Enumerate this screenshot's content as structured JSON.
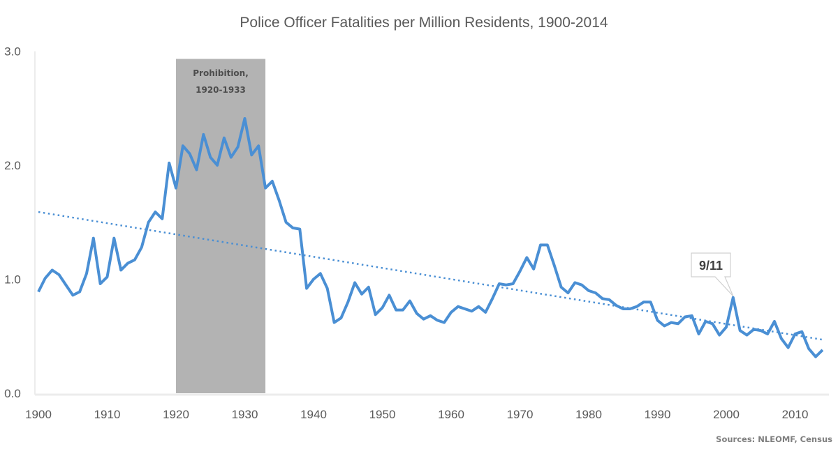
{
  "chart_data": {
    "type": "line",
    "title": "Police Officer Fatalities per Million Residents, 1900-2014",
    "xlabel": "",
    "ylabel": "",
    "xlim": [
      1900,
      2014
    ],
    "ylim": [
      0,
      3
    ],
    "x_ticks": [
      "1900",
      "1910",
      "1920",
      "1930",
      "1940",
      "1950",
      "1960",
      "1970",
      "1980",
      "1990",
      "2000",
      "2010"
    ],
    "y_ticks": [
      "0.0",
      "1.0",
      "2.0",
      "3.0"
    ],
    "grid": false,
    "legend": "none",
    "series": [
      {
        "color": "#4a8fd4",
        "x_start": 1900,
        "values": [
          0.89,
          1.01,
          1.08,
          1.04,
          0.95,
          0.86,
          0.89,
          1.05,
          1.36,
          0.96,
          1.02,
          1.36,
          1.08,
          1.14,
          1.17,
          1.28,
          1.5,
          1.59,
          1.53,
          2.02,
          1.8,
          2.17,
          2.1,
          1.96,
          2.27,
          2.07,
          2.0,
          2.24,
          2.07,
          2.16,
          2.41,
          2.09,
          2.17,
          1.8,
          1.86,
          1.69,
          1.5,
          1.45,
          1.44,
          0.92,
          1.0,
          1.05,
          0.92,
          0.62,
          0.66,
          0.8,
          0.97,
          0.87,
          0.93,
          0.69,
          0.75,
          0.86,
          0.73,
          0.73,
          0.81,
          0.7,
          0.65,
          0.68,
          0.64,
          0.62,
          0.71,
          0.76,
          0.74,
          0.72,
          0.76,
          0.71,
          0.83,
          0.96,
          0.95,
          0.96,
          1.07,
          1.19,
          1.09,
          1.3,
          1.3,
          1.12,
          0.93,
          0.88,
          0.97,
          0.95,
          0.9,
          0.88,
          0.83,
          0.82,
          0.77,
          0.74,
          0.74,
          0.76,
          0.8,
          0.8,
          0.64,
          0.59,
          0.62,
          0.61,
          0.67,
          0.68,
          0.52,
          0.63,
          0.61,
          0.51,
          0.58,
          0.84,
          0.55,
          0.51,
          0.56,
          0.55,
          0.52,
          0.63,
          0.48,
          0.4,
          0.52,
          0.54,
          0.39,
          0.32,
          0.38
        ]
      }
    ],
    "trendline": {
      "type": "linear",
      "style": "dotted",
      "color": "#4a8fd4",
      "start": [
        1900,
        1.59
      ],
      "end": [
        2014,
        0.47
      ]
    },
    "shaded_region": {
      "from": 1920,
      "to": 1933,
      "label_line1": "Prohibition,",
      "label_line2": "1920-1933",
      "color": "#b3b3b3"
    },
    "annotations": [
      {
        "text": "9/11",
        "x": 2001,
        "y": 0.84
      }
    ],
    "source": "Sources: NLEOMF, Census"
  }
}
